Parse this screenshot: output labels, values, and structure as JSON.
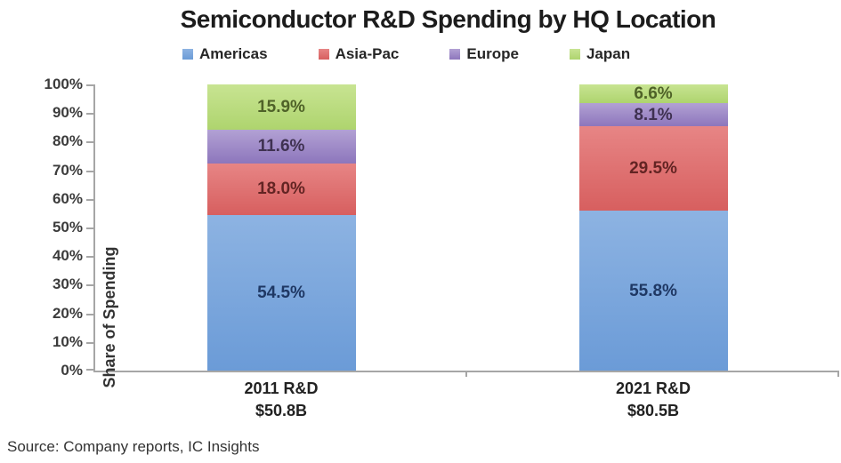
{
  "title": "Semiconductor R&D Spending by HQ Location",
  "source_note": "Source: Company reports, IC Insights",
  "axis_color": "#a6a6a6",
  "chart_data": {
    "type": "bar",
    "stacked": true,
    "orientation": "vertical",
    "title": "Semiconductor R&D Spending by HQ Location",
    "xlabel": "",
    "ylabel": "Share of Spending",
    "ylim": [
      0,
      100
    ],
    "y_tick_labels_top_to_bottom": [
      "100%",
      "90%",
      "80%",
      "70%",
      "60%",
      "50%",
      "40%",
      "30%",
      "20%",
      "10%",
      "0%"
    ],
    "grid": false,
    "legend_position": "top",
    "categories": [
      {
        "label": "2011 R&D",
        "sublabel": "$50.8B"
      },
      {
        "label": "2021 R&D",
        "sublabel": "$80.5B"
      }
    ],
    "series": [
      {
        "name": "Americas",
        "values": [
          54.5,
          55.8
        ],
        "color": "#7ba3dc",
        "gradient_top": "#8db3e2",
        "gradient_bottom": "#6b9bd7",
        "label_color": "#1f3864"
      },
      {
        "name": "Asia-Pac",
        "values": [
          18.0,
          29.5
        ],
        "color": "#dd6e6e",
        "gradient_top": "#e78585",
        "gradient_bottom": "#d75f5f",
        "label_color": "#632423"
      },
      {
        "name": "Europe",
        "values": [
          11.6,
          8.1
        ],
        "color": "#9b84c6",
        "gradient_top": "#b2a1d4",
        "gradient_bottom": "#8d76bc",
        "label_color": "#3f3151"
      },
      {
        "name": "Japan",
        "values": [
          15.9,
          6.6
        ],
        "color": "#b5da78",
        "gradient_top": "#c8e492",
        "gradient_bottom": "#aed46e",
        "label_color": "#4f6228"
      }
    ]
  }
}
